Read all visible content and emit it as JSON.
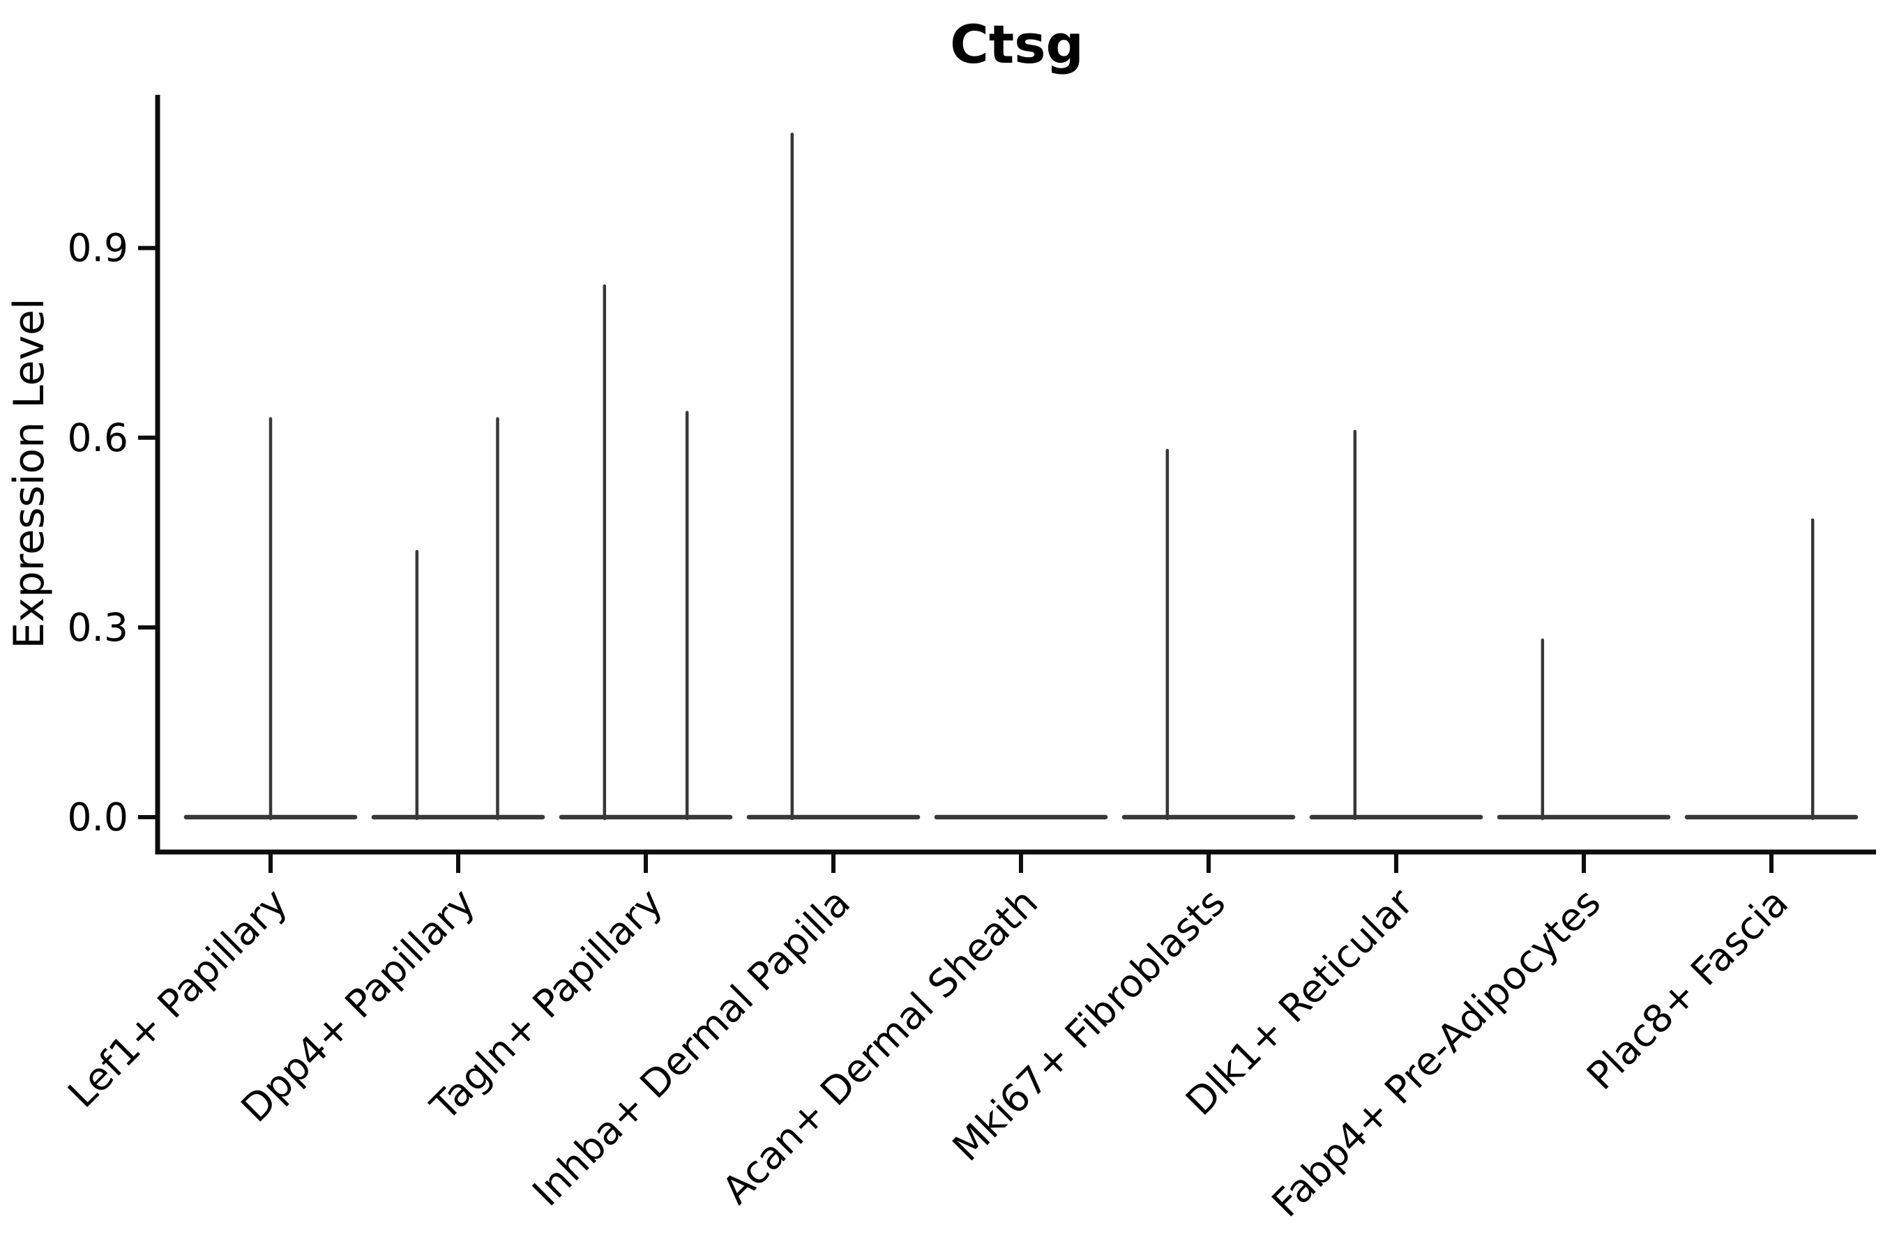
{
  "figure": {
    "title": "Ctsg"
  },
  "y_axis": {
    "label": "Expression Level",
    "tick_labels": [
      "0.0",
      "0.3",
      "0.6",
      "0.9"
    ]
  },
  "x_axis": {
    "label": "",
    "tick_labels": [
      "Lef1+ Papillary",
      "Dpp4+ Papillary",
      "Tagln+ Papillary",
      "Inhba+ Dermal Papilla",
      "Acan+ Dermal Sheath",
      "Mki67+ Fibroblasts",
      "Dlk1+ Reticular",
      "Fabp4+ Pre-Adipocytes",
      "Plac8+ Fascia"
    ]
  },
  "chart_data": {
    "type": "violin",
    "title": "Ctsg",
    "xlabel": "",
    "ylabel": "Expression Level",
    "ylim": [
      0,
      1.14
    ],
    "yticks": [
      0,
      0.3,
      0.6,
      0.9
    ],
    "ytick_labels": [
      "0.0",
      "0.3",
      "0.6",
      "0.9"
    ],
    "grid": false,
    "legend": "none",
    "categories": [
      "Lef1+ Papillary",
      "Dpp4+ Papillary",
      "Tagln+ Papillary",
      "Inhba+ Dermal Papilla",
      "Acan+ Dermal Sheath",
      "Mki67+ Fibroblasts",
      "Dlk1+ Reticular",
      "Fabp4+ Pre-Adipocytes",
      "Plac8+ Fascia"
    ],
    "description": "Violin plot of Ctsg expression per fibroblast subtype; expression is near zero in all clusters so each violin collapses to a flat base at 0 with thin spikes up to the maximum expressing cells. Spike offset is the horizontal position of the spike within the category slot (fraction of slot spacing from the category center).",
    "violins": [
      {
        "category": "Lef1+ Papillary",
        "base_width": 0.9,
        "spikes": [
          {
            "offset": 0.0,
            "value": 0.63
          }
        ]
      },
      {
        "category": "Dpp4+ Papillary",
        "base_width": 0.9,
        "spikes": [
          {
            "offset": -0.22,
            "value": 0.42
          },
          {
            "offset": 0.21,
            "value": 0.63
          }
        ]
      },
      {
        "category": "Tagln+ Papillary",
        "base_width": 0.9,
        "spikes": [
          {
            "offset": -0.22,
            "value": 0.84
          },
          {
            "offset": 0.22,
            "value": 0.64
          }
        ]
      },
      {
        "category": "Inhba+ Dermal Papilla",
        "base_width": 0.9,
        "spikes": [
          {
            "offset": -0.22,
            "value": 1.08
          }
        ]
      },
      {
        "category": "Acan+ Dermal Sheath",
        "base_width": 0.9,
        "spikes": []
      },
      {
        "category": "Mki67+ Fibroblasts",
        "base_width": 0.9,
        "spikes": [
          {
            "offset": -0.22,
            "value": 0.58
          }
        ]
      },
      {
        "category": "Dlk1+ Reticular",
        "base_width": 0.9,
        "spikes": [
          {
            "offset": -0.22,
            "value": 0.61
          }
        ]
      },
      {
        "category": "Fabp4+ Pre-Adipocytes",
        "base_width": 0.9,
        "spikes": [
          {
            "offset": -0.22,
            "value": 0.28
          }
        ]
      },
      {
        "category": "Plac8+ Fascia",
        "base_width": 0.9,
        "spikes": [
          {
            "offset": 0.22,
            "value": 0.47
          }
        ]
      }
    ],
    "colors": {
      "violin_line": "#383838",
      "axis_line": "#0d0d0d",
      "text": "#000000",
      "background": "#ffffff"
    }
  }
}
